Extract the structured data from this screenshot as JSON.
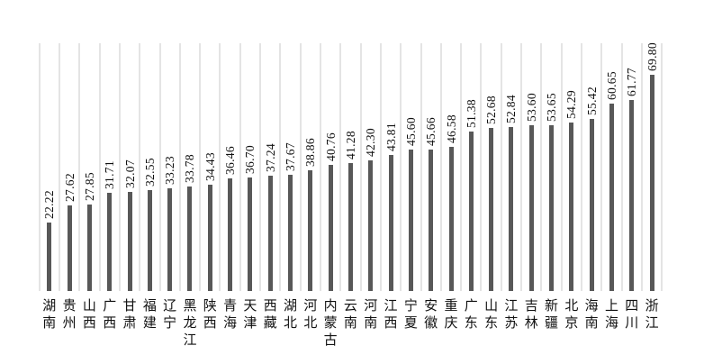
{
  "chart_data": {
    "type": "bar",
    "orientation": "vertical",
    "title": "",
    "xlabel": "",
    "ylabel": "",
    "ylim": [
      0,
      80
    ],
    "grid": "vertical category separator lines",
    "legend": "none",
    "bar_color": "#585858",
    "gridline_color": "#e4e4e4",
    "value_label_rotation": "90deg counter-clockwise (reads bottom-to-top)",
    "category_label_style": "CJK characters stacked vertically",
    "categories": [
      "湖南",
      "贵州",
      "山西",
      "广西",
      "甘肃",
      "福建",
      "辽宁",
      "黑龙江",
      "陕西",
      "青海",
      "天津",
      "西藏",
      "湖北",
      "河北",
      "内蒙古",
      "云南",
      "河南",
      "江西",
      "宁夏",
      "安徽",
      "重庆",
      "广东",
      "山东",
      "江苏",
      "吉林",
      "新疆",
      "北京",
      "海南",
      "上海",
      "四川",
      "浙江"
    ],
    "values": [
      22.22,
      27.62,
      27.85,
      31.71,
      32.07,
      32.55,
      33.23,
      33.78,
      34.43,
      36.46,
      36.7,
      37.24,
      37.67,
      38.86,
      40.76,
      41.28,
      42.3,
      43.81,
      45.6,
      45.66,
      46.58,
      51.38,
      52.68,
      52.84,
      53.6,
      53.65,
      54.29,
      55.42,
      60.65,
      61.77,
      69.8
    ],
    "values_text": [
      "22.22",
      "27.62",
      "27.85",
      "31.71",
      "32.07",
      "32.55",
      "33.23",
      "33.78",
      "34.43",
      "36.46",
      "36.70",
      "37.24",
      "37.67",
      "38.86",
      "40.76",
      "41.28",
      "42.30",
      "43.81",
      "45.60",
      "45.66",
      "46.58",
      "51.38",
      "52.68",
      "52.84",
      "53.60",
      "53.65",
      "54.29",
      "55.42",
      "60.65",
      "61.77",
      "69.80"
    ]
  }
}
